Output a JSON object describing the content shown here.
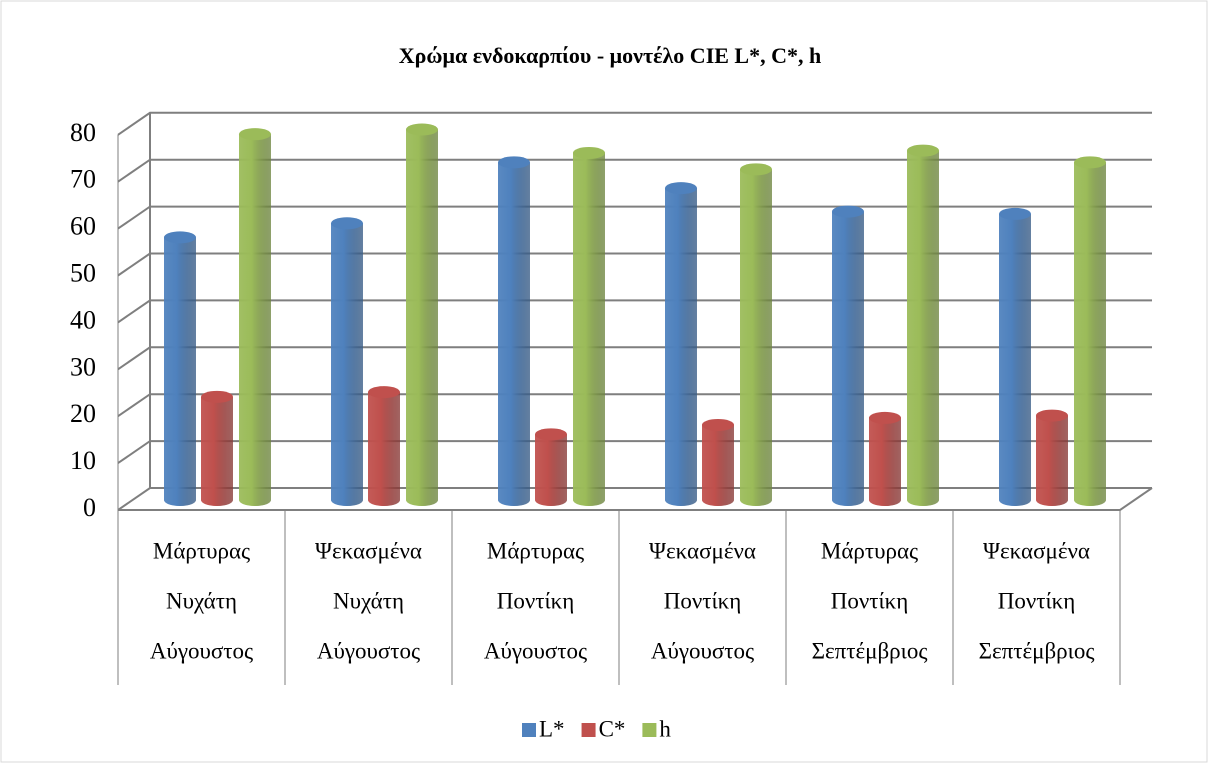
{
  "chart_data": {
    "type": "bar3d",
    "title": "Χρώμα ενδοκαρπίου - μοντέλο CIE L*, C*, h",
    "categories": [
      [
        "Μάρτυρας",
        "Νυχάτη",
        "Αύγουστος"
      ],
      [
        "Ψεκασμένα",
        "Νυχάτη",
        "Αύγουστος"
      ],
      [
        "Μάρτυρας",
        "Ποντίκη",
        "Αύγουστος"
      ],
      [
        "Ψεκασμένα",
        "Ποντίκη",
        "Αύγουστος"
      ],
      [
        "Μάρτυρας",
        "Ποντίκη",
        "Σεπτέμβριος"
      ],
      [
        "Ψεκασμένα",
        "Ποντίκη",
        "Σεπτέμβριος"
      ]
    ],
    "series": [
      {
        "name": "L*",
        "color": "#4f81bd",
        "values": [
          56,
          59,
          72,
          66.5,
          61.5,
          61
        ]
      },
      {
        "name": "C*",
        "color": "#c0504d",
        "values": [
          22,
          23,
          14,
          16,
          17.5,
          18
        ]
      },
      {
        "name": "h",
        "color": "#9bbb59",
        "values": [
          78,
          79,
          74,
          70.5,
          74.5,
          72
        ]
      }
    ],
    "ylim": [
      0,
      80
    ],
    "yticks": [
      0,
      10,
      20,
      30,
      40,
      50,
      60,
      70,
      80
    ],
    "grid": true,
    "legend": "bottom"
  }
}
